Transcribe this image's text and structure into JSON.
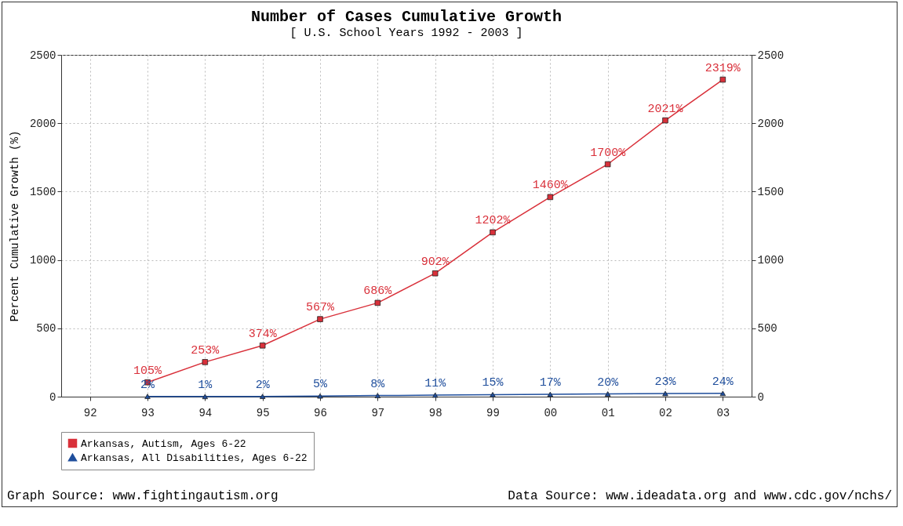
{
  "chart_data": {
    "type": "line",
    "title": "Number of Cases Cumulative Growth",
    "subtitle": "[ U.S. School Years 1992 - 2003 ]",
    "ylabel": "Percent Cumulative Growth (%)",
    "categories": [
      "92",
      "93",
      "94",
      "95",
      "96",
      "97",
      "98",
      "99",
      "00",
      "01",
      "02",
      "03"
    ],
    "series": [
      {
        "name": "Arkansas, Autism, Ages 6-22",
        "color": "#d9303a",
        "marker": "square",
        "values": [
          null,
          105,
          253,
          374,
          567,
          686,
          902,
          1202,
          1460,
          1700,
          2021,
          2319
        ],
        "value_labels": [
          null,
          "105%",
          "253%",
          "374%",
          "567%",
          "686%",
          "902%",
          "1202%",
          "1460%",
          "1700%",
          "2021%",
          "2319%"
        ]
      },
      {
        "name": "Arkansas, All Disabilities, Ages 6-22",
        "color": "#1f4e9c",
        "marker": "triangle",
        "values": [
          null,
          2,
          1,
          2,
          5,
          8,
          11,
          15,
          17,
          20,
          23,
          24
        ],
        "value_labels": [
          null,
          "2%",
          "1%",
          "2%",
          "5%",
          "8%",
          "11%",
          "15%",
          "17%",
          "20%",
          "23%",
          "24%"
        ]
      }
    ],
    "ylim": [
      0,
      2500
    ],
    "yticks": [
      0,
      500,
      1000,
      1500,
      2000,
      2500
    ],
    "y2lim": [
      0,
      2500
    ],
    "y2ticks": [
      0,
      500,
      1000,
      1500,
      2000,
      2500
    ],
    "grid": true,
    "legend": "bottom",
    "line_style": "solid",
    "annotations": [
      "Graph Source: www.fightingautism.org",
      "Data Source: www.ideadata.org and www.cdc.gov/nchs/"
    ]
  }
}
